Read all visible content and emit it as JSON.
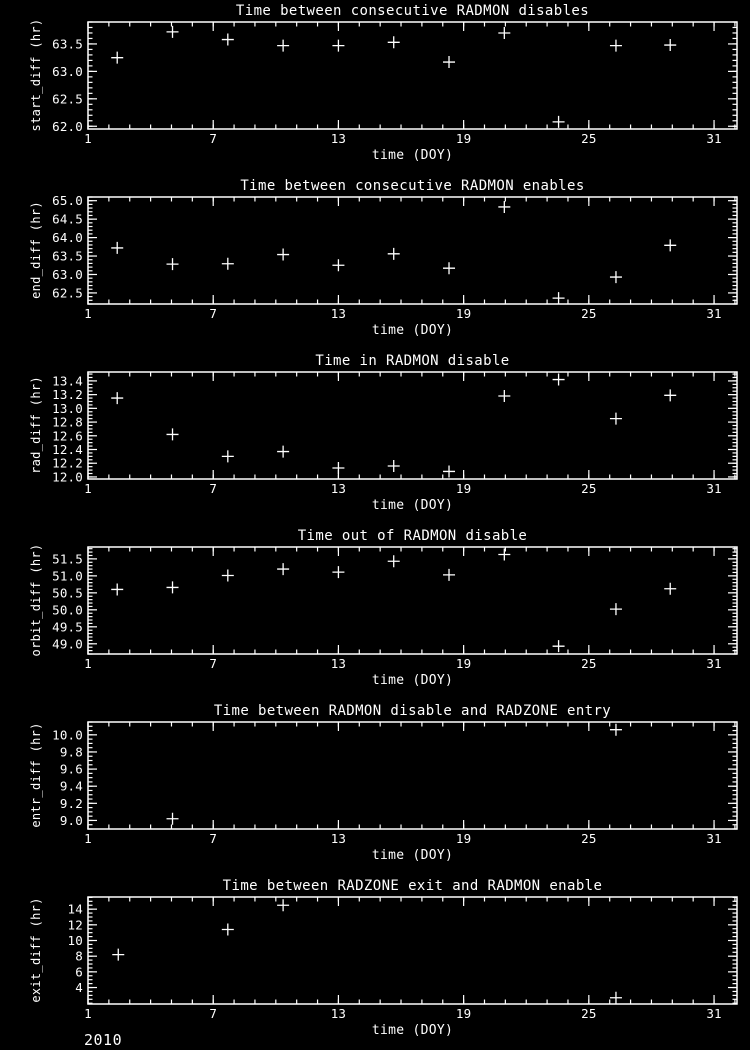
{
  "colors": {
    "background": "#000000",
    "foreground": "#ffffff"
  },
  "footer": {
    "year": "2010"
  },
  "chart_data": [
    {
      "type": "scatter",
      "marker": "plus",
      "title": "Time between consecutive RADMON disables",
      "xlabel": "time (DOY)",
      "ylabel": "start_diff (hr)",
      "xlim": [
        1,
        32.1
      ],
      "ylim": [
        61.95,
        63.9
      ],
      "xticks": {
        "major": [
          1,
          7,
          13,
          19,
          25,
          31
        ],
        "labels": [
          "1",
          "7",
          "13",
          "19",
          "25",
          "31"
        ],
        "minor_step": 1
      },
      "yticks": {
        "major": [
          62.0,
          62.5,
          63.0,
          63.5
        ],
        "labels": [
          "62.0",
          "62.5",
          "63.0",
          "63.5"
        ],
        "minor_step": 0.1
      },
      "x": [
        2.4,
        5.05,
        7.7,
        10.35,
        13.0,
        15.65,
        18.3,
        20.95,
        23.55,
        26.3,
        28.9
      ],
      "y": [
        63.25,
        63.72,
        63.58,
        63.47,
        63.47,
        63.53,
        63.17,
        63.7,
        62.08,
        63.47,
        63.48
      ]
    },
    {
      "type": "scatter",
      "marker": "plus",
      "title": "Time between consecutive RADMON enables",
      "xlabel": "time (DOY)",
      "ylabel": "end_diff (hr)",
      "xlim": [
        1,
        32.1
      ],
      "ylim": [
        62.2,
        65.1
      ],
      "xticks": {
        "major": [
          1,
          7,
          13,
          19,
          25,
          31
        ],
        "labels": [
          "1",
          "7",
          "13",
          "19",
          "25",
          "31"
        ],
        "minor_step": 1
      },
      "yticks": {
        "major": [
          62.5,
          63.0,
          63.5,
          64.0,
          64.5,
          65.0
        ],
        "labels": [
          "62.5",
          "63.0",
          "63.5",
          "64.0",
          "64.5",
          "65.0"
        ],
        "minor_step": 0.1
      },
      "x": [
        2.4,
        5.05,
        7.7,
        10.35,
        13.0,
        15.65,
        18.3,
        20.95,
        23.55,
        26.3,
        28.9
      ],
      "y": [
        63.72,
        63.28,
        63.29,
        63.54,
        63.25,
        63.56,
        63.17,
        64.83,
        62.36,
        62.93,
        63.79
      ]
    },
    {
      "type": "scatter",
      "marker": "plus",
      "title": "Time in RADMON disable",
      "xlabel": "time (DOY)",
      "ylabel": "rad_diff (hr)",
      "xlim": [
        1,
        32.1
      ],
      "ylim": [
        11.97,
        13.53
      ],
      "xticks": {
        "major": [
          1,
          7,
          13,
          19,
          25,
          31
        ],
        "labels": [
          "1",
          "7",
          "13",
          "19",
          "25",
          "31"
        ],
        "minor_step": 1
      },
      "yticks": {
        "major": [
          12.0,
          12.2,
          12.4,
          12.6,
          12.8,
          13.0,
          13.2,
          13.4
        ],
        "labels": [
          "12.0",
          "12.2",
          "12.4",
          "12.6",
          "12.8",
          "13.0",
          "13.2",
          "13.4"
        ],
        "minor_step": 0.05
      },
      "x": [
        2.4,
        5.05,
        7.7,
        10.35,
        13.0,
        15.65,
        18.3,
        20.95,
        23.55,
        26.3,
        28.9
      ],
      "y": [
        13.15,
        12.62,
        12.3,
        12.37,
        12.13,
        12.16,
        12.08,
        13.18,
        13.42,
        12.85,
        13.19
      ]
    },
    {
      "type": "scatter",
      "marker": "plus",
      "title": "Time out of RADMON disable",
      "xlabel": "time (DOY)",
      "ylabel": "orbit_diff (hr)",
      "xlim": [
        1,
        32.1
      ],
      "ylim": [
        48.7,
        51.85
      ],
      "xticks": {
        "major": [
          1,
          7,
          13,
          19,
          25,
          31
        ],
        "labels": [
          "1",
          "7",
          "13",
          "19",
          "25",
          "31"
        ],
        "minor_step": 1
      },
      "yticks": {
        "major": [
          49.0,
          49.5,
          50.0,
          50.5,
          51.0,
          51.5
        ],
        "labels": [
          "49.0",
          "49.5",
          "50.0",
          "50.5",
          "51.0",
          "51.5"
        ],
        "minor_step": 0.1
      },
      "x": [
        2.4,
        5.05,
        7.7,
        10.35,
        13.0,
        15.65,
        18.3,
        20.95,
        23.55,
        26.3,
        28.9
      ],
      "y": [
        50.6,
        50.66,
        51.01,
        51.2,
        51.11,
        51.43,
        51.03,
        51.63,
        48.93,
        50.02,
        50.62
      ]
    },
    {
      "type": "scatter",
      "marker": "plus",
      "title": "Time between RADMON disable and RADZONE entry",
      "xlabel": "time (DOY)",
      "ylabel": "entr_diff (hr)",
      "xlim": [
        1,
        32.1
      ],
      "ylim": [
        8.9,
        10.15
      ],
      "xticks": {
        "major": [
          1,
          7,
          13,
          19,
          25,
          31
        ],
        "labels": [
          "1",
          "7",
          "13",
          "19",
          "25",
          "31"
        ],
        "minor_step": 1
      },
      "yticks": {
        "major": [
          9.0,
          9.2,
          9.4,
          9.6,
          9.8,
          10.0
        ],
        "labels": [
          "9.0",
          "9.2",
          "9.4",
          "9.6",
          "9.8",
          "10.0"
        ],
        "minor_step": 0.05
      },
      "x": [
        5.05,
        26.3
      ],
      "y": [
        9.02,
        10.06
      ]
    },
    {
      "type": "scatter",
      "marker": "plus",
      "title": "Time between RADZONE exit and RADMON enable",
      "xlabel": "time (DOY)",
      "ylabel": "exit_diff (hr)",
      "xlim": [
        1,
        32.1
      ],
      "ylim": [
        1.9,
        15.55
      ],
      "xticks": {
        "major": [
          1,
          7,
          13,
          19,
          25,
          31
        ],
        "labels": [
          "1",
          "7",
          "13",
          "19",
          "25",
          "31"
        ],
        "minor_step": 1
      },
      "yticks": {
        "major": [
          4,
          6,
          8,
          10,
          12,
          14
        ],
        "labels": [
          "4",
          "6",
          "8",
          "10",
          "12",
          "14"
        ],
        "minor_step": 0.5
      },
      "x": [
        2.45,
        7.7,
        10.35,
        26.3
      ],
      "y": [
        8.2,
        11.4,
        14.5,
        2.7
      ]
    }
  ]
}
